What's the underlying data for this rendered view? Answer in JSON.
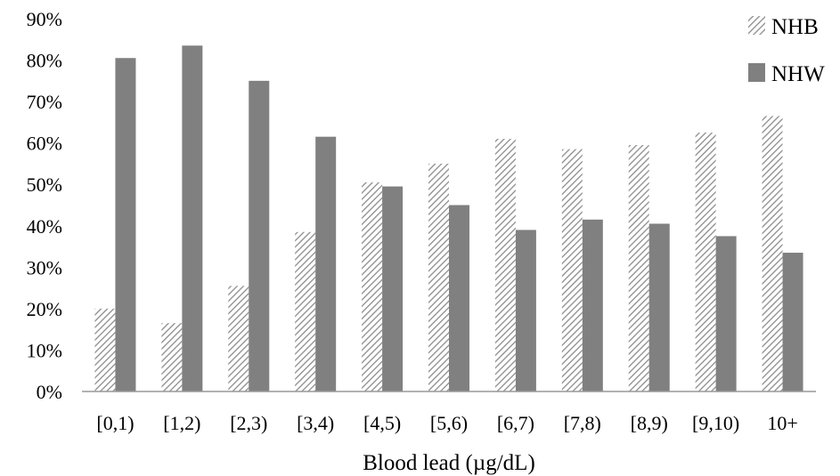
{
  "chart_data": {
    "type": "bar",
    "categories": [
      "[0,1)",
      "[1,2)",
      "[2,3)",
      "[3,4)",
      "[4,5)",
      "[5,6)",
      "[6,7)",
      "[7,8)",
      "[8,9)",
      "[9,10)",
      "10+"
    ],
    "series": [
      {
        "name": "NHB",
        "values": [
          20,
          16.5,
          25.5,
          38.5,
          50.5,
          55,
          61,
          58.5,
          59.5,
          62.5,
          66.5
        ],
        "color": "#8c8c8c",
        "fill": "hatched"
      },
      {
        "name": "NHW",
        "values": [
          80.5,
          83.5,
          75,
          61.5,
          49.5,
          45,
          39,
          41.5,
          40.5,
          37.5,
          33.5
        ],
        "color": "#808080",
        "fill": "solid"
      }
    ],
    "title": "",
    "xlabel": "Blood lead (µg/dL)",
    "ylabel": "",
    "ylim": [
      0,
      90
    ],
    "yticks": [
      0,
      10,
      20,
      30,
      40,
      50,
      60,
      70,
      80,
      90
    ],
    "ytick_labels": [
      "0%",
      "10%",
      "20%",
      "30%",
      "40%",
      "50%",
      "60%",
      "70%",
      "80%",
      "90%"
    ],
    "grid": false,
    "legend_position": "top-right"
  }
}
